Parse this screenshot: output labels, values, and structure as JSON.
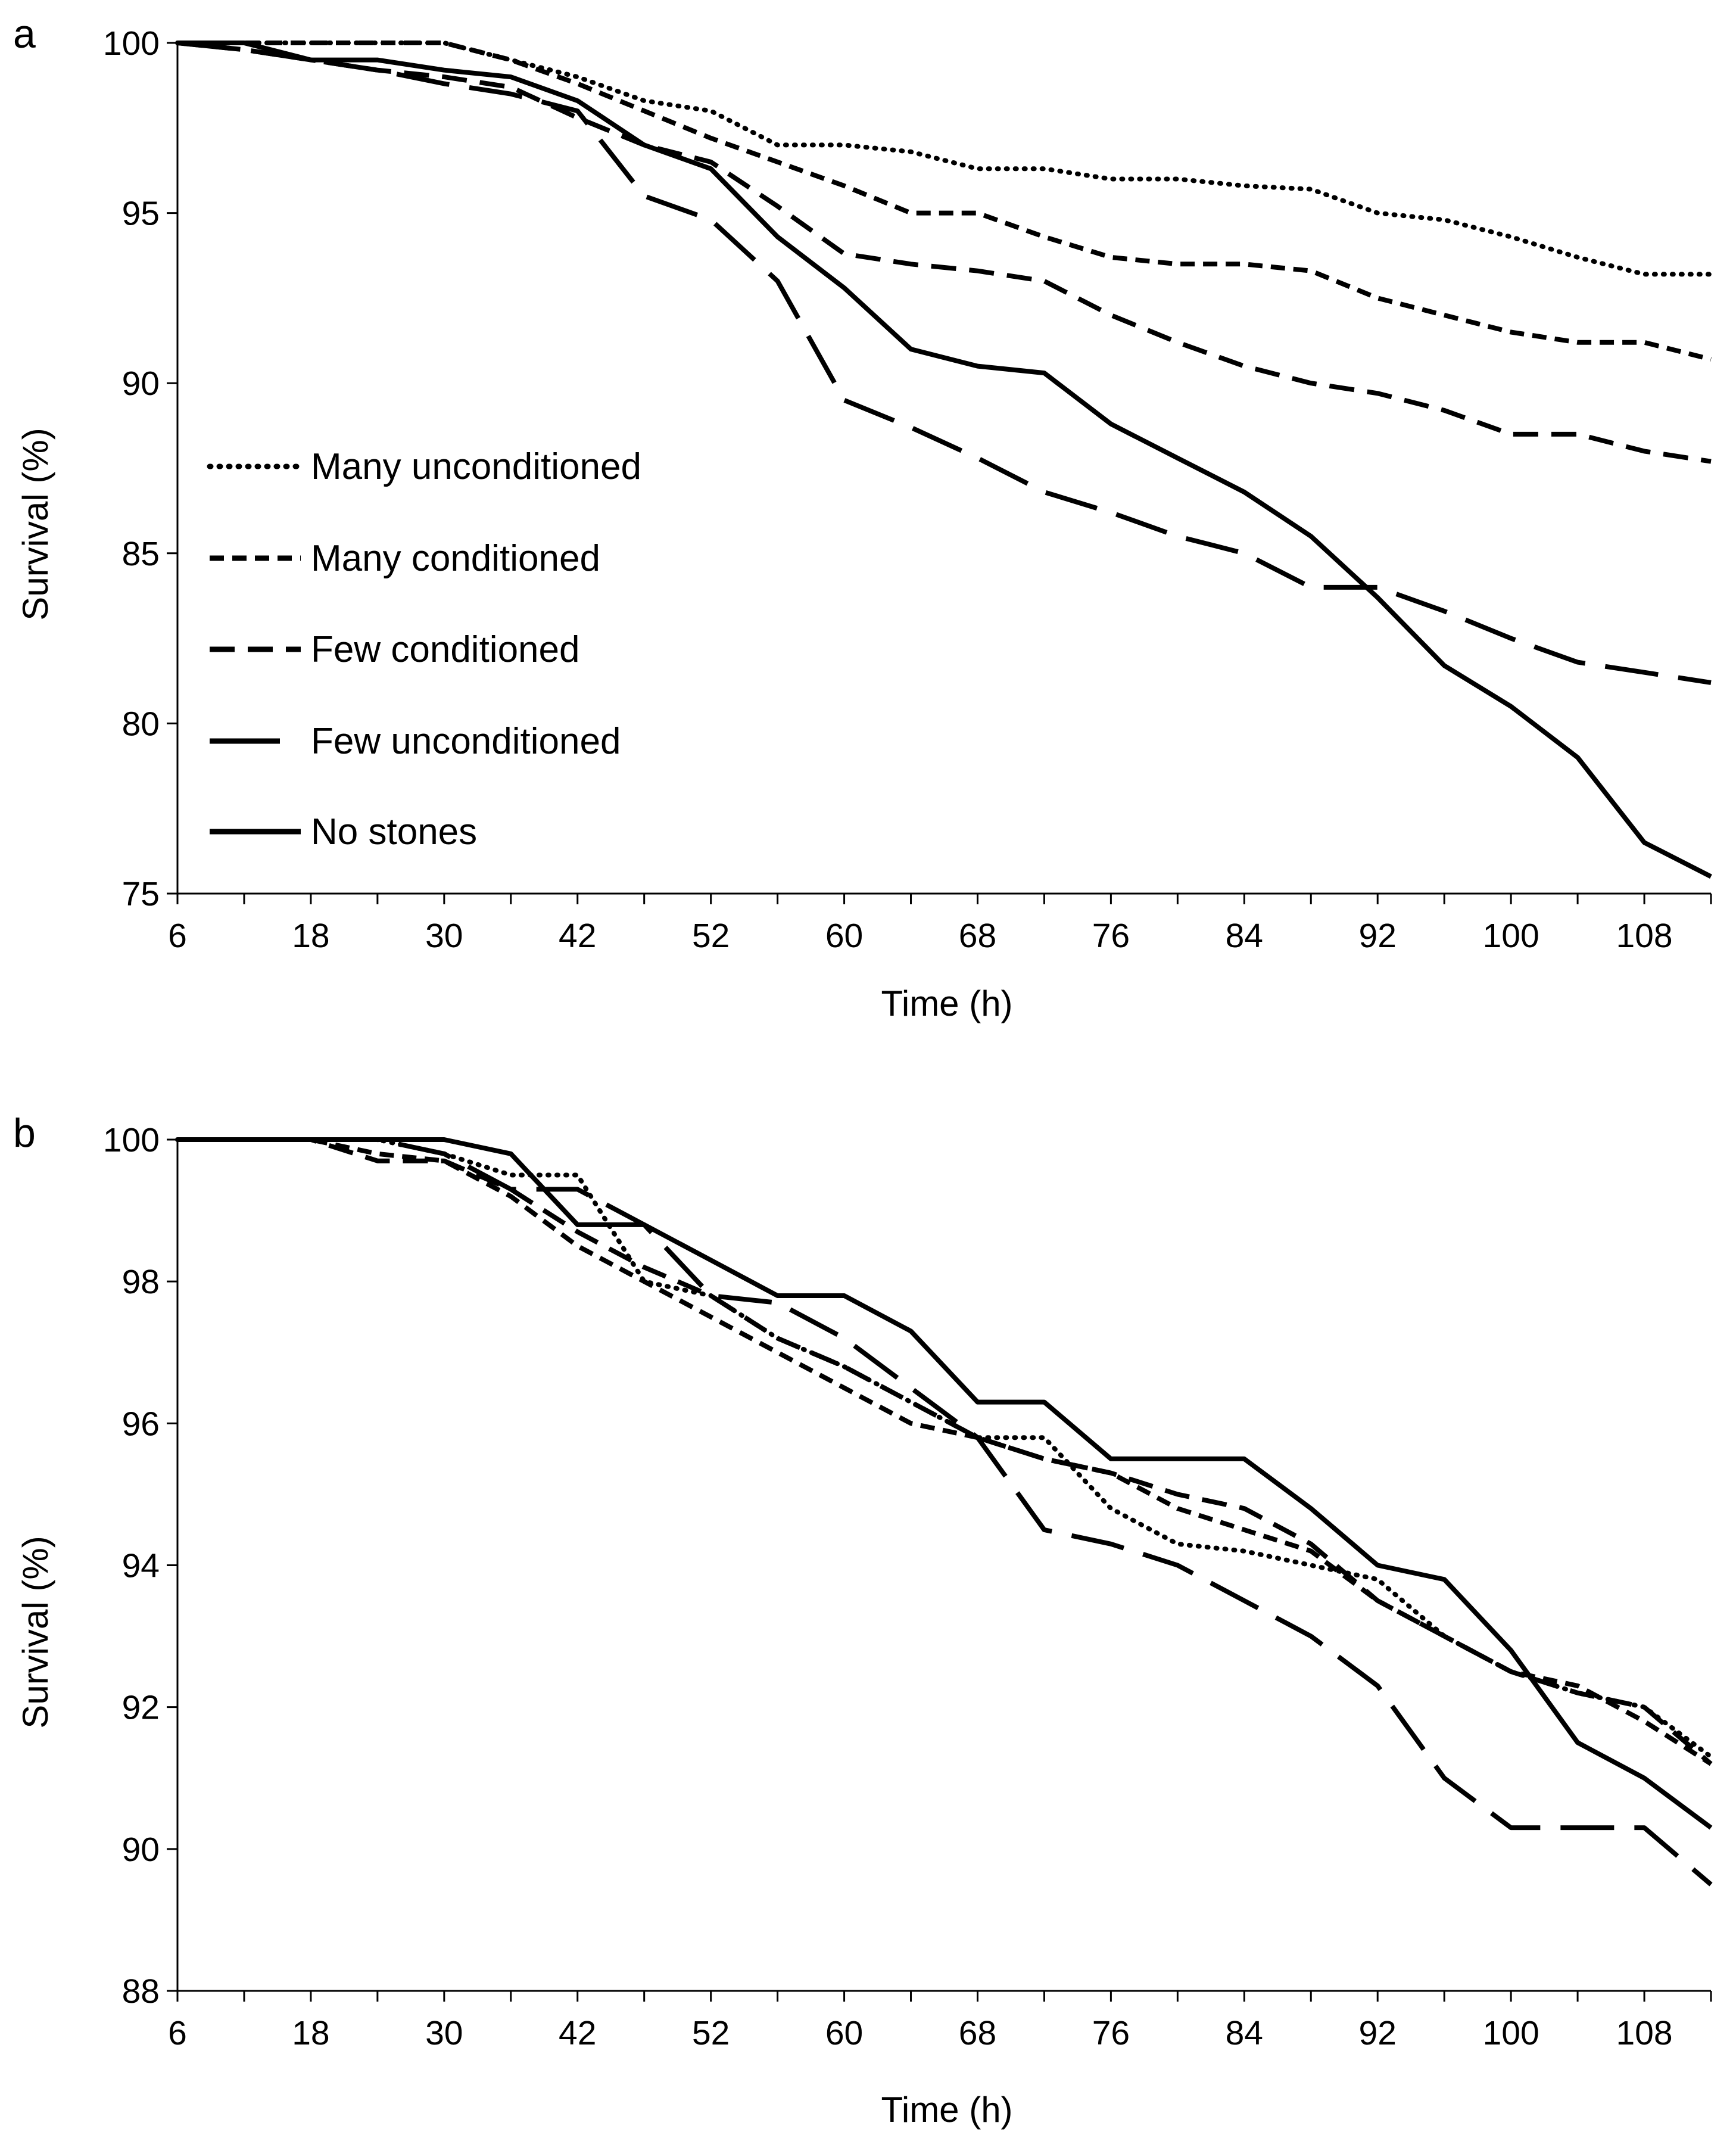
{
  "x_ticks": [
    "6",
    "18",
    "30",
    "42",
    "52",
    "60",
    "68",
    "76",
    "84",
    "92",
    "100",
    "108"
  ],
  "legend_entries": [
    {
      "label": "Many unconditioned",
      "style": "dotted"
    },
    {
      "label": "Many conditioned",
      "style": "short-dash"
    },
    {
      "label": "Few conditioned",
      "style": "medium-dash"
    },
    {
      "label": "Few unconditioned",
      "style": "long-dash"
    },
    {
      "label": "No stones",
      "style": "solid"
    }
  ],
  "chart_data": [
    {
      "type": "line",
      "panel_label": "a",
      "xlabel": "Time (h)",
      "ylabel": "Survival (%)",
      "ylim": [
        75,
        100
      ],
      "y_ticks": [
        75,
        80,
        85,
        90,
        95,
        100
      ],
      "grid": false,
      "legend": "left-middle",
      "x": [
        6,
        12,
        18,
        24,
        30,
        36,
        42,
        46,
        52,
        56,
        60,
        64,
        68,
        72,
        76,
        80,
        84,
        88,
        92,
        96,
        100,
        104,
        108,
        112
      ],
      "series": [
        {
          "name": "Many unconditioned",
          "style": "dotted",
          "values": [
            100,
            100,
            100,
            100,
            100,
            99.5,
            99,
            98.3,
            98,
            97,
            97,
            96.8,
            96.3,
            96.3,
            96,
            96,
            95.8,
            95.7,
            95,
            94.8,
            94.3,
            93.7,
            93.2,
            93.2
          ]
        },
        {
          "name": "Many conditioned",
          "style": "short-dash",
          "values": [
            100,
            100,
            100,
            100,
            100,
            99.5,
            98.8,
            98,
            97.2,
            96.5,
            95.8,
            95,
            95,
            94.3,
            93.7,
            93.5,
            93.5,
            93.3,
            92.5,
            92,
            91.5,
            91.2,
            91.2,
            90.7
          ]
        },
        {
          "name": "Few conditioned",
          "style": "medium-dash",
          "values": [
            100,
            99.8,
            99.5,
            99.2,
            99,
            98.7,
            97.8,
            97,
            96.5,
            95.2,
            93.8,
            93.5,
            93.3,
            93,
            92,
            91.2,
            90.5,
            90,
            89.7,
            89.2,
            88.5,
            88.5,
            88,
            87.7
          ]
        },
        {
          "name": "Few unconditioned",
          "style": "long-dash",
          "values": [
            100,
            99.8,
            99.5,
            99.2,
            98.8,
            98.5,
            98,
            95.5,
            94.8,
            93,
            89.5,
            88.7,
            87.8,
            86.8,
            86.2,
            85.5,
            85,
            84,
            84,
            83.3,
            82.5,
            81.8,
            81.5,
            81.2
          ]
        },
        {
          "name": "No stones",
          "style": "solid",
          "values": [
            100,
            100,
            99.5,
            99.5,
            99.2,
            99,
            98.3,
            97,
            96.3,
            94.3,
            92.8,
            91,
            90.5,
            90.3,
            88.8,
            87.8,
            86.8,
            85.5,
            83.7,
            81.7,
            80.5,
            79,
            76.5,
            75.5
          ]
        }
      ]
    },
    {
      "type": "line",
      "panel_label": "b",
      "xlabel": "Time (h)",
      "ylabel": "Survival (%)",
      "ylim": [
        88,
        100
      ],
      "y_ticks": [
        88,
        90,
        92,
        94,
        96,
        98,
        100
      ],
      "grid": false,
      "legend": "none",
      "x": [
        6,
        12,
        18,
        24,
        30,
        36,
        42,
        46,
        52,
        56,
        60,
        64,
        68,
        72,
        76,
        80,
        84,
        88,
        92,
        96,
        100,
        104,
        108,
        112
      ],
      "series": [
        {
          "style": "dotted",
          "values": [
            100,
            100,
            100,
            100,
            99.8,
            99.5,
            99.5,
            98.0,
            97.8,
            97.2,
            96.8,
            96.3,
            95.8,
            95.8,
            94.8,
            94.3,
            94.2,
            94.0,
            93.8,
            93.0,
            92.5,
            92.2,
            92.0,
            91.3
          ]
        },
        {
          "style": "short-dash",
          "values": [
            100,
            100,
            100,
            99.8,
            99.7,
            99.2,
            98.5,
            98.0,
            97.5,
            97.0,
            96.5,
            96.0,
            95.8,
            95.5,
            95.3,
            94.8,
            94.5,
            94.2,
            93.5,
            93.0,
            92.5,
            92.3,
            91.8,
            91.2
          ]
        },
        {
          "style": "medium-dash",
          "values": [
            100,
            100,
            100,
            99.7,
            99.7,
            99.3,
            98.7,
            98.2,
            97.8,
            97.2,
            96.8,
            96.3,
            95.8,
            95.5,
            95.3,
            95.0,
            94.8,
            94.3,
            93.5,
            93.0,
            92.5,
            92.2,
            92.0,
            91.2
          ]
        },
        {
          "style": "long-dash",
          "values": [
            100,
            100,
            100,
            100,
            99.8,
            99.3,
            99.3,
            98.8,
            97.8,
            97.7,
            97.2,
            96.5,
            95.8,
            94.5,
            94.3,
            94.0,
            93.5,
            93.0,
            92.3,
            91.0,
            90.3,
            90.3,
            90.3,
            89.5
          ]
        },
        {
          "style": "solid",
          "values": [
            100,
            100,
            100,
            100,
            100,
            99.8,
            98.8,
            98.8,
            98.3,
            97.8,
            97.8,
            97.3,
            96.3,
            96.3,
            95.5,
            95.5,
            95.5,
            94.8,
            94.0,
            93.8,
            92.8,
            91.5,
            91.0,
            90.3
          ]
        }
      ]
    }
  ]
}
